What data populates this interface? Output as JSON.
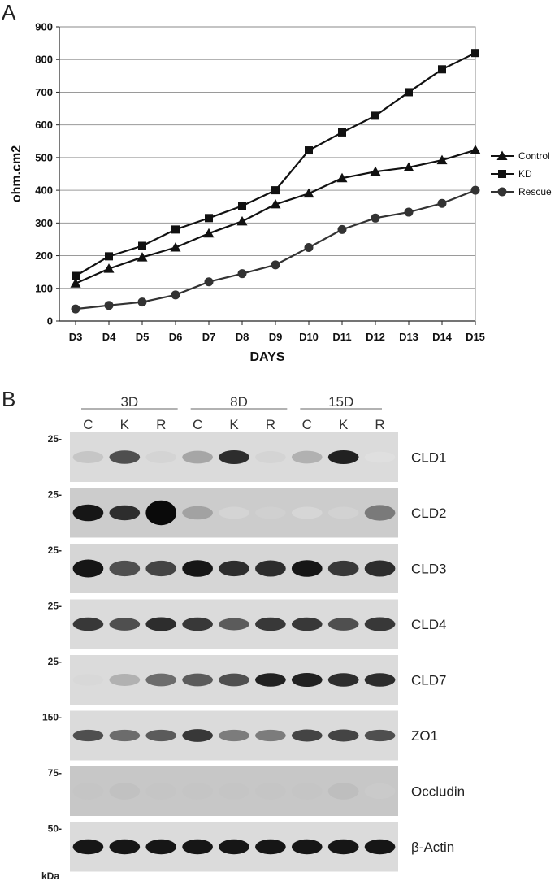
{
  "panels": {
    "a": "A",
    "b": "B"
  },
  "chart_data": {
    "type": "line",
    "title": "",
    "xlabel": "DAYS",
    "ylabel": "ohm.cm2",
    "categories": [
      "D3",
      "D4",
      "D5",
      "D6",
      "D7",
      "D8",
      "D9",
      "D10",
      "D11",
      "D12",
      "D13",
      "D14",
      "D15"
    ],
    "ylim": [
      0,
      900
    ],
    "yticks": [
      0,
      100,
      200,
      300,
      400,
      500,
      600,
      700,
      800,
      900
    ],
    "grid": true,
    "legend_position": "right",
    "series": [
      {
        "name": "Control",
        "marker": "triangle",
        "color": "#111111",
        "values": [
          115,
          160,
          195,
          225,
          268,
          305,
          357,
          390,
          437,
          457,
          470,
          492,
          523
        ]
      },
      {
        "name": "KD",
        "marker": "square",
        "color": "#111111",
        "values": [
          138,
          198,
          230,
          280,
          315,
          352,
          400,
          522,
          577,
          628,
          700,
          770,
          820
        ]
      },
      {
        "name": "Rescue",
        "marker": "circle",
        "color": "#333333",
        "values": [
          37,
          48,
          58,
          80,
          120,
          145,
          172,
          225,
          280,
          315,
          333,
          360,
          400
        ]
      }
    ]
  },
  "blot": {
    "groups": [
      "3D",
      "8D",
      "15D"
    ],
    "lanes": [
      "C",
      "K",
      "R",
      "C",
      "K",
      "R",
      "C",
      "K",
      "R"
    ],
    "unit": "kDa",
    "rows": [
      {
        "label": "CLD1",
        "marker": "25-",
        "intensity": [
          0.25,
          0.7,
          0.15,
          0.4,
          0.85,
          0.15,
          0.35,
          0.9,
          0.05
        ],
        "thickness": [
          0.5,
          0.6,
          0.5,
          0.55,
          0.65,
          0.5,
          0.55,
          0.65,
          0.4
        ]
      },
      {
        "label": "CLD2",
        "marker": "25-",
        "intensity": [
          0.95,
          0.85,
          1.0,
          0.4,
          0.08,
          0.12,
          0.05,
          0.1,
          0.55
        ],
        "thickness": [
          0.9,
          0.75,
          1.6,
          0.6,
          0.5,
          0.5,
          0.5,
          0.5,
          0.8
        ]
      },
      {
        "label": "CLD3",
        "marker": "25-",
        "intensity": [
          0.95,
          0.7,
          0.75,
          0.95,
          0.85,
          0.85,
          0.95,
          0.8,
          0.85
        ],
        "thickness": [
          1.0,
          0.8,
          0.8,
          0.9,
          0.8,
          0.85,
          0.9,
          0.8,
          0.85
        ]
      },
      {
        "label": "CLD4",
        "marker": "25-",
        "intensity": [
          0.8,
          0.7,
          0.85,
          0.8,
          0.65,
          0.8,
          0.8,
          0.7,
          0.8
        ],
        "thickness": [
          0.6,
          0.55,
          0.65,
          0.6,
          0.5,
          0.6,
          0.6,
          0.55,
          0.65
        ]
      },
      {
        "label": "CLD7",
        "marker": "25-",
        "intensity": [
          0.12,
          0.35,
          0.6,
          0.65,
          0.7,
          0.9,
          0.9,
          0.85,
          0.85
        ],
        "thickness": [
          0.45,
          0.5,
          0.55,
          0.55,
          0.55,
          0.6,
          0.65,
          0.6,
          0.6
        ]
      },
      {
        "label": "ZO1",
        "marker": "150-",
        "intensity": [
          0.7,
          0.6,
          0.65,
          0.8,
          0.55,
          0.55,
          0.75,
          0.75,
          0.7
        ],
        "thickness": [
          0.45,
          0.45,
          0.45,
          0.55,
          0.45,
          0.45,
          0.5,
          0.5,
          0.45
        ]
      },
      {
        "label": "Occludin",
        "marker": "75-",
        "intensity": [
          0.2,
          0.22,
          0.2,
          0.2,
          0.2,
          0.2,
          0.2,
          0.25,
          0.15
        ],
        "thickness": [
          0.9,
          0.9,
          0.9,
          0.9,
          0.9,
          0.9,
          0.9,
          0.9,
          0.8
        ]
      },
      {
        "label": "β-Actin",
        "marker": "50-",
        "intensity": [
          0.95,
          0.95,
          0.95,
          0.95,
          0.95,
          0.95,
          0.95,
          0.95,
          0.95
        ],
        "thickness": [
          0.75,
          0.75,
          0.75,
          0.75,
          0.75,
          0.75,
          0.75,
          0.75,
          0.75
        ]
      }
    ]
  }
}
